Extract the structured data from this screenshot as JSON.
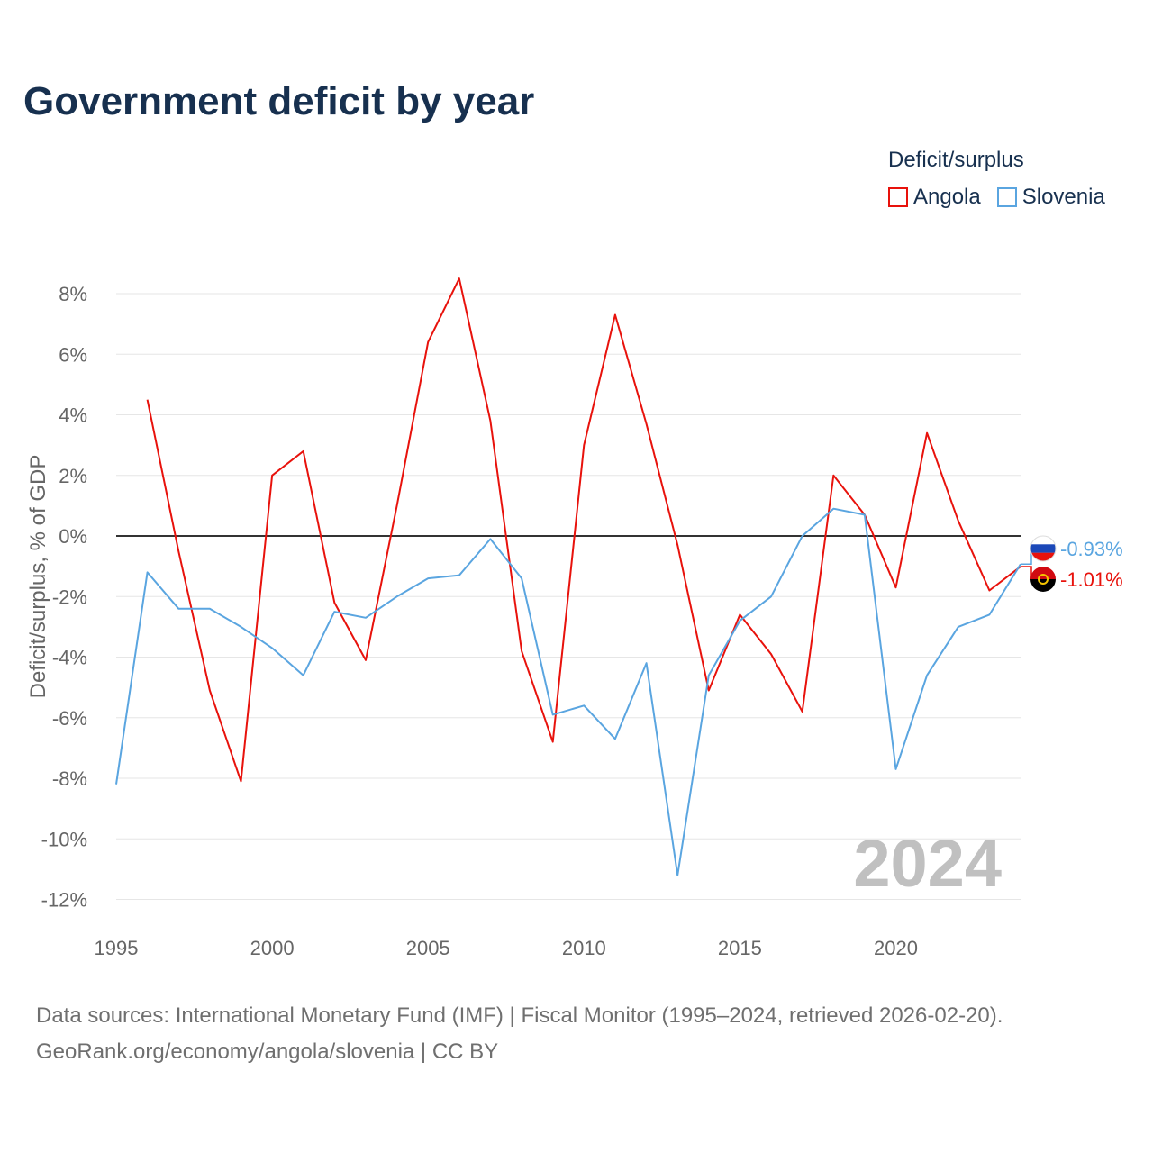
{
  "title": "Government deficit by year",
  "legend": {
    "title": "Deficit/surplus",
    "items": [
      {
        "label": "Angola",
        "color": "#e8120c"
      },
      {
        "label": "Slovenia",
        "color": "#5aa5e0"
      }
    ]
  },
  "footer": {
    "line1": "Data sources: International Monetary Fund (IMF) | Fiscal Monitor (1995–2024, retrieved 2026-02-20).",
    "line2": "GeoRank.org/economy/angola/slovenia | CC BY"
  },
  "chart_data": {
    "type": "line",
    "title": "Government deficit by year",
    "ylabel": "Deficit/surplus, % of GDP",
    "xlabel": "",
    "xlim": [
      1995,
      2024
    ],
    "ylim": [
      -12.5,
      8.5
    ],
    "yticks": [
      8,
      6,
      4,
      2,
      0,
      -2,
      -4,
      -6,
      -8,
      -10,
      -12
    ],
    "ytick_labels": [
      "8%",
      "6%",
      "4%",
      "2%",
      "0%",
      "-2%",
      "-4%",
      "-6%",
      "-8%",
      "-10%",
      "-12%"
    ],
    "xticks": [
      1995,
      2000,
      2005,
      2010,
      2015,
      2020
    ],
    "xtick_labels": [
      "1995",
      "2000",
      "2005",
      "2010",
      "2015",
      "2020"
    ],
    "current_year": "2024",
    "series": [
      {
        "name": "Angola",
        "color": "#e8120c",
        "end_label": "-1.01%",
        "x": [
          1996,
          1997,
          1998,
          1999,
          2000,
          2001,
          2002,
          2003,
          2004,
          2005,
          2006,
          2007,
          2008,
          2009,
          2010,
          2011,
          2012,
          2013,
          2014,
          2015,
          2016,
          2017,
          2018,
          2019,
          2020,
          2021,
          2022,
          2023,
          2024
        ],
        "values": [
          4.5,
          -0.5,
          -5.1,
          -8.1,
          2.0,
          2.8,
          -2.2,
          -4.1,
          1.0,
          6.4,
          8.5,
          3.8,
          -3.8,
          -6.8,
          3.0,
          7.3,
          3.7,
          -0.3,
          -5.1,
          -2.6,
          -3.9,
          -5.8,
          2.0,
          0.7,
          -1.7,
          3.4,
          0.5,
          -1.8,
          -1.01
        ]
      },
      {
        "name": "Slovenia",
        "color": "#5aa5e0",
        "end_label": "-0.93%",
        "x": [
          1995,
          1996,
          1997,
          1998,
          1999,
          2000,
          2001,
          2002,
          2003,
          2004,
          2005,
          2006,
          2007,
          2008,
          2009,
          2010,
          2011,
          2012,
          2013,
          2014,
          2015,
          2016,
          2017,
          2018,
          2019,
          2020,
          2021,
          2022,
          2023,
          2024
        ],
        "values": [
          -8.2,
          -1.2,
          -2.4,
          -2.4,
          -3.0,
          -3.7,
          -4.6,
          -2.5,
          -2.7,
          -2.0,
          -1.4,
          -1.3,
          -0.1,
          -1.4,
          -5.9,
          -5.6,
          -6.7,
          -4.2,
          -11.2,
          -4.6,
          -2.8,
          -2.0,
          0.0,
          0.9,
          0.7,
          -7.7,
          -4.6,
          -3.0,
          -2.6,
          -0.93
        ]
      }
    ]
  }
}
